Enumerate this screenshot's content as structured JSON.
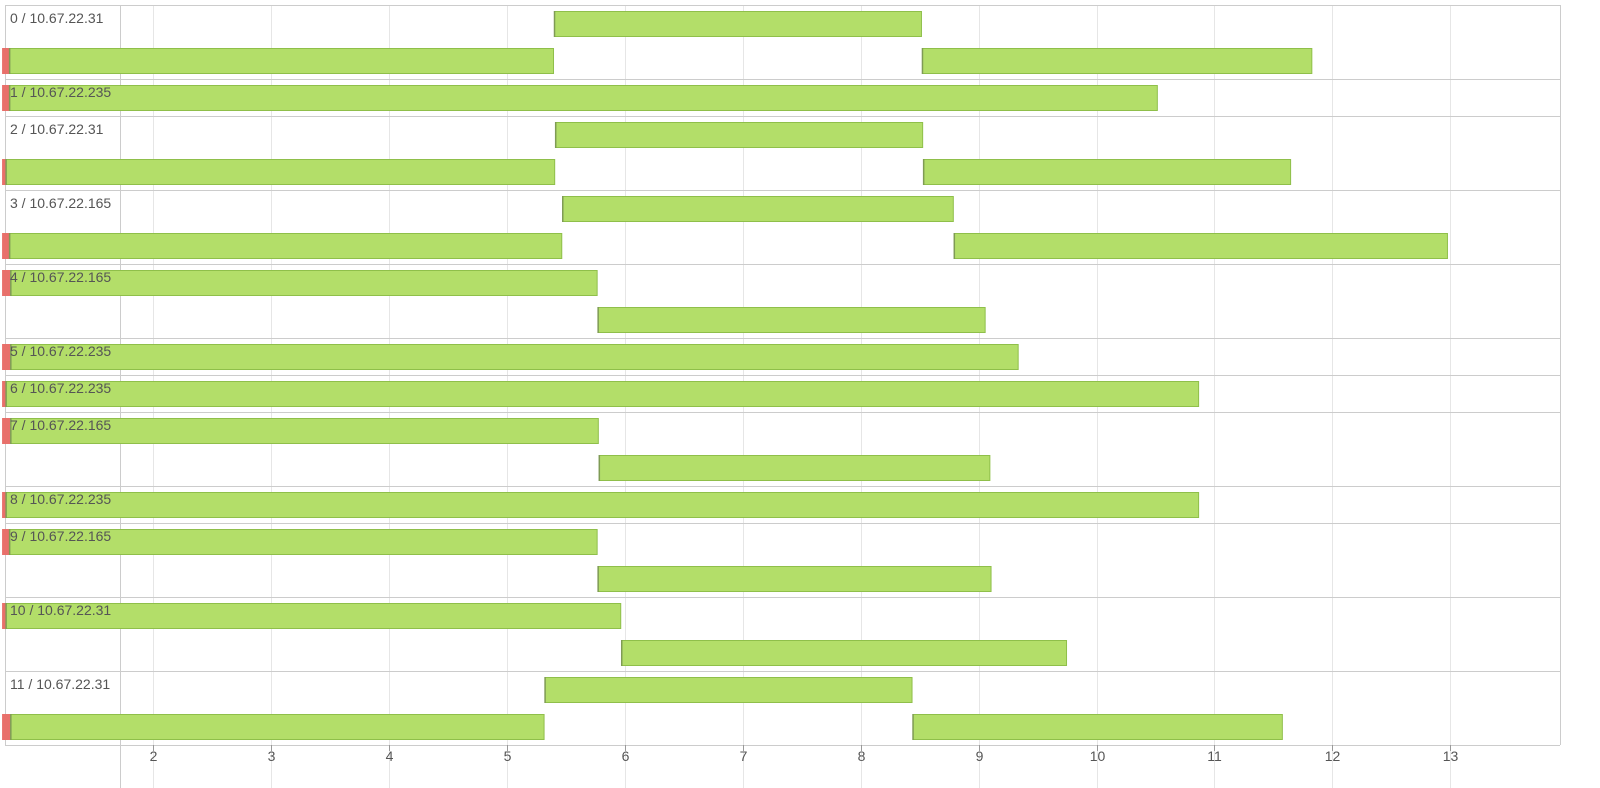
{
  "chart_data": {
    "type": "gantt",
    "x_axis": {
      "min": 1.72,
      "max": 13.93,
      "ticks": [
        2,
        3,
        4,
        5,
        6,
        7,
        8,
        9,
        10,
        11,
        12,
        13
      ],
      "grid": true
    },
    "rows": [
      {
        "label": "0 / 10.67.22.31",
        "lanes": [
          [
            {
              "start": 5.4,
              "end": 8.52
            }
          ],
          [
            {
              "start": 0.72,
              "end": 0.78,
              "color": "#e8706b"
            },
            {
              "start": 0.78,
              "end": 5.4
            },
            {
              "start": 8.52,
              "end": 11.83
            }
          ]
        ]
      },
      {
        "label": "1 / 10.67.22.235",
        "lanes": [
          [
            {
              "start": 0.72,
              "end": 0.78,
              "color": "#e8706b"
            },
            {
              "start": 0.78,
              "end": 10.52
            }
          ]
        ]
      },
      {
        "label": "2 / 10.67.22.31",
        "lanes": [
          [
            {
              "start": 5.41,
              "end": 8.53
            }
          ],
          [
            {
              "start": 0.72,
              "end": 0.75,
              "color": "#e8706b"
            },
            {
              "start": 0.75,
              "end": 5.41
            },
            {
              "start": 8.53,
              "end": 11.65
            }
          ]
        ]
      },
      {
        "label": "3 / 10.67.22.165",
        "lanes": [
          [
            {
              "start": 5.47,
              "end": 8.79
            }
          ],
          [
            {
              "start": 0.72,
              "end": 0.78,
              "color": "#e8706b"
            },
            {
              "start": 0.78,
              "end": 5.47
            },
            {
              "start": 8.79,
              "end": 12.98
            }
          ]
        ]
      },
      {
        "label": "4 / 10.67.22.165",
        "lanes": [
          [
            {
              "start": 0.72,
              "end": 0.79,
              "color": "#e8706b"
            },
            {
              "start": 0.79,
              "end": 5.77
            }
          ],
          [
            {
              "start": 5.77,
              "end": 9.06
            }
          ]
        ]
      },
      {
        "label": "5 / 10.67.22.235",
        "lanes": [
          [
            {
              "start": 0.72,
              "end": 0.79,
              "color": "#e8706b"
            },
            {
              "start": 0.79,
              "end": 9.34
            }
          ]
        ]
      },
      {
        "label": "6 / 10.67.22.235",
        "lanes": [
          [
            {
              "start": 0.72,
              "end": 0.75,
              "color": "#e8706b"
            },
            {
              "start": 0.75,
              "end": 10.87
            }
          ]
        ]
      },
      {
        "label": "7 / 10.67.22.165",
        "lanes": [
          [
            {
              "start": 0.72,
              "end": 0.79,
              "color": "#e8706b"
            },
            {
              "start": 0.79,
              "end": 5.78
            }
          ],
          [
            {
              "start": 5.78,
              "end": 9.1
            }
          ]
        ]
      },
      {
        "label": "8 / 10.67.22.235",
        "lanes": [
          [
            {
              "start": 0.72,
              "end": 0.75,
              "color": "#e8706b"
            },
            {
              "start": 0.75,
              "end": 10.87
            }
          ]
        ]
      },
      {
        "label": "9 / 10.67.22.165",
        "lanes": [
          [
            {
              "start": 0.72,
              "end": 0.78,
              "color": "#e8706b"
            },
            {
              "start": 0.78,
              "end": 5.77
            }
          ],
          [
            {
              "start": 5.77,
              "end": 9.11
            }
          ]
        ]
      },
      {
        "label": "10 / 10.67.22.31",
        "lanes": [
          [
            {
              "start": 0.72,
              "end": 0.75,
              "color": "#e8706b"
            },
            {
              "start": 0.75,
              "end": 5.97
            }
          ],
          [
            {
              "start": 5.97,
              "end": 9.75
            }
          ]
        ]
      },
      {
        "label": "11 / 10.67.22.31",
        "lanes": [
          [
            {
              "start": 5.32,
              "end": 8.44
            }
          ],
          [
            {
              "start": 0.72,
              "end": 0.79,
              "color": "#e8706b"
            },
            {
              "start": 0.79,
              "end": 5.32
            },
            {
              "start": 8.44,
              "end": 11.58
            }
          ]
        ]
      }
    ],
    "colors": {
      "bar": "#b3de69",
      "bar_edge": "#8fbf4a",
      "gap": "#e8706b",
      "grid": "#e6e6e6",
      "row_border": "#cccccc",
      "text": "#555555"
    }
  }
}
